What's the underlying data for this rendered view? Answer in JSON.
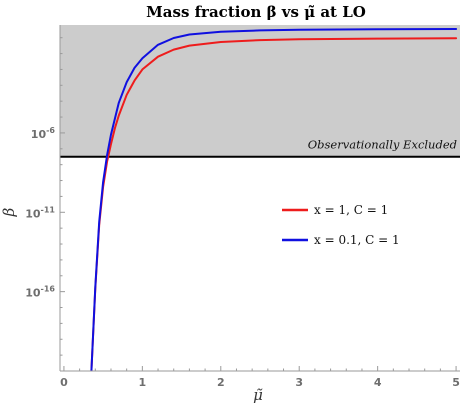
{
  "chart_data": {
    "type": "line",
    "title": "Mass fraction β vs μ̃ at LO",
    "xlabel": "μ̃",
    "ylabel": "β",
    "xlim": [
      -0.05,
      5.05
    ],
    "ylim_log10": [
      -21,
      0.8
    ],
    "y_scale": "log",
    "grid": false,
    "x_ticks": [
      0,
      1,
      2,
      3,
      4,
      5
    ],
    "x_tick_labels": [
      "0",
      "1",
      "2",
      "3",
      "4",
      "5"
    ],
    "y_ticks_log10": [
      -6,
      -11,
      -16
    ],
    "y_tick_labels": [
      "10-6",
      "10-11",
      "10-16"
    ],
    "excluded_region": {
      "label": "Observationally Excluded",
      "log10_beta_min": -7.5,
      "fill_color": "#cccccc",
      "boundary_color": "#000000"
    },
    "legend_position": "center-right",
    "series": [
      {
        "name": "x = 1, C = 1",
        "color": "#ee1c1c",
        "x": [
          0.35,
          0.4,
          0.45,
          0.5,
          0.55,
          0.6,
          0.65,
          0.7,
          0.8,
          0.9,
          1.0,
          1.2,
          1.4,
          1.6,
          2.0,
          2.5,
          3.0,
          4.0,
          5.0
        ],
        "log10_beta": [
          -21,
          -15.8,
          -11.8,
          -9.4,
          -7.8,
          -6.7,
          -5.7,
          -4.9,
          -3.6,
          -2.7,
          -2.0,
          -1.2,
          -0.75,
          -0.5,
          -0.27,
          -0.15,
          -0.1,
          -0.06,
          -0.04
        ]
      },
      {
        "name": "x = 0.1, C = 1",
        "color": "#1010e0",
        "x": [
          0.35,
          0.4,
          0.45,
          0.5,
          0.55,
          0.6,
          0.65,
          0.7,
          0.8,
          0.9,
          1.0,
          1.2,
          1.4,
          1.6,
          2.0,
          2.5,
          3.0,
          4.0,
          5.0
        ],
        "log10_beta": [
          -21,
          -15.7,
          -11.6,
          -9.1,
          -7.4,
          -6.1,
          -5.1,
          -4.1,
          -2.8,
          -1.9,
          -1.3,
          -0.45,
          -0.02,
          0.2,
          0.38,
          0.46,
          0.5,
          0.53,
          0.55
        ]
      }
    ]
  }
}
